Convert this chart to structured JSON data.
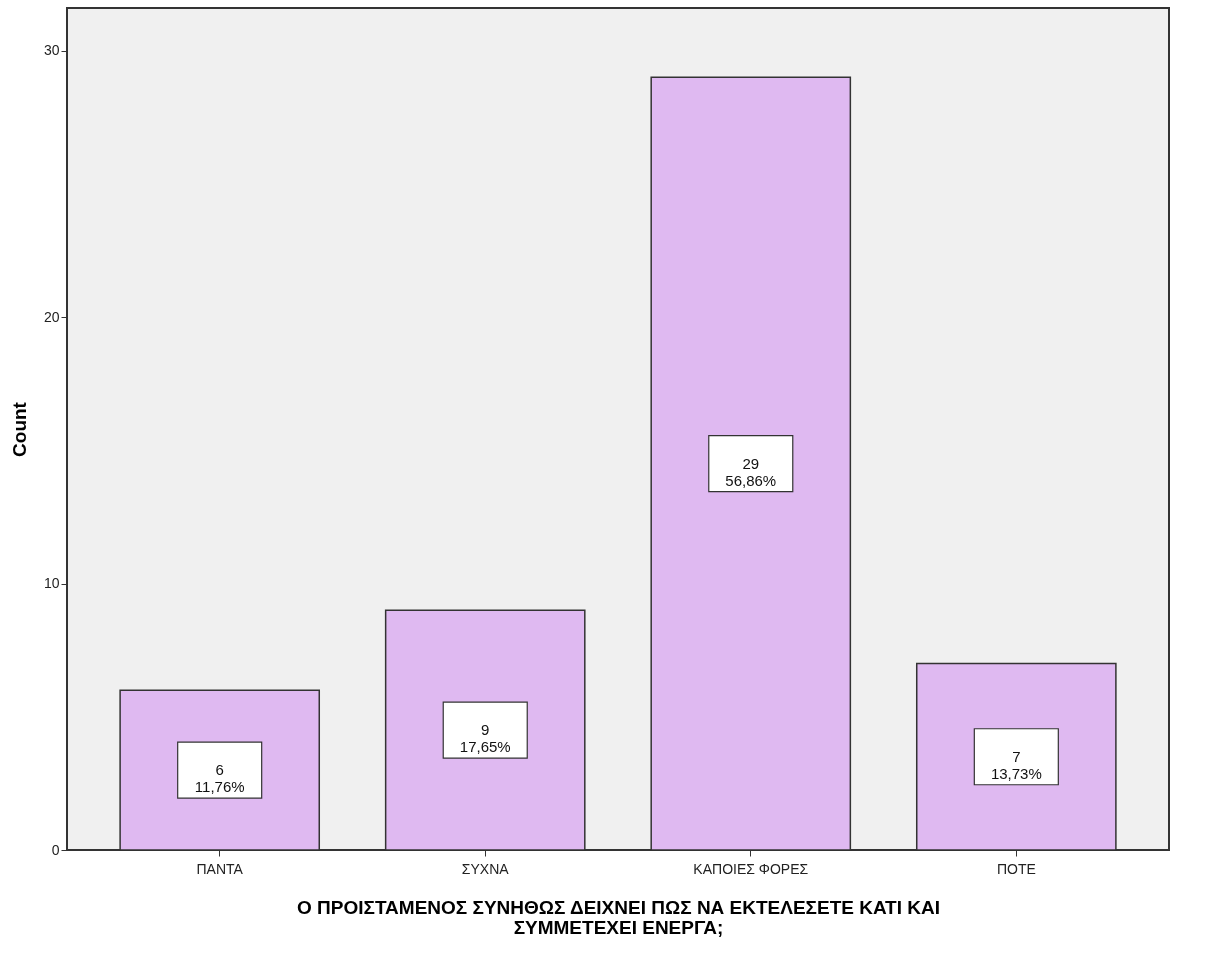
{
  "chart_data": {
    "type": "bar",
    "xlabel": "Ο ΠΡΟΙΣΤΑΜΕΝΟΣ ΣΥΝΗΘΩΣ ΔΕΙΧΝΕΙ ΠΩΣ ΝΑ ΕΚΤΕΛΕΣΕΤΕ ΚΑΤΙ ΚΑΙ\nΣΥΜΜΕΤΕΧΕΙ ΕΝΕΡΓΑ;",
    "ylabel": "Count",
    "categories": [
      "ΠΑΝΤΑ",
      "ΣΥΧΝΑ",
      "ΚΑΠΟΙΕΣ ΦΟΡΕΣ",
      "ΠΟΤΕ"
    ],
    "values": [
      6,
      9,
      29,
      7
    ],
    "color": "#dfb9f1",
    "value_labels": [
      "6\n11,76%",
      "9\n17,65%",
      "29\n56,86%",
      "7\n13,73%"
    ],
    "ylim": [
      0,
      31.6
    ],
    "yticks": [
      0,
      10,
      20,
      30
    ],
    "grid": false
  }
}
